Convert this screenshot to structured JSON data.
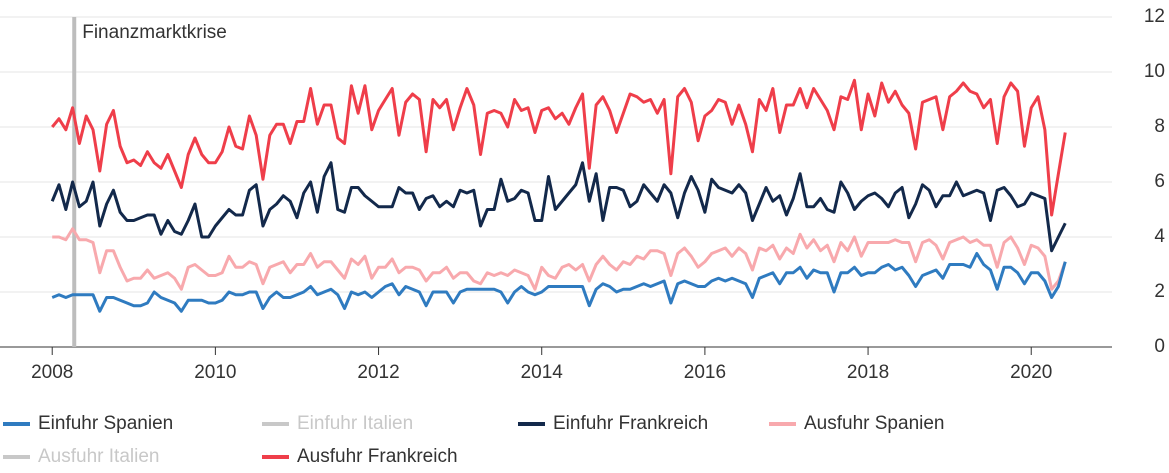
{
  "chart_data": {
    "type": "line",
    "annotation": {
      "text": "Finanzmarktkrise",
      "x": 2008.27
    },
    "x": [
      2008,
      2008.083,
      2008.167,
      2008.25,
      2008.333,
      2008.417,
      2008.5,
      2008.583,
      2008.667,
      2008.75,
      2008.833,
      2008.917,
      2009,
      2009.083,
      2009.167,
      2009.25,
      2009.333,
      2009.417,
      2009.5,
      2009.583,
      2009.667,
      2009.75,
      2009.833,
      2009.917,
      2010,
      2010.083,
      2010.167,
      2010.25,
      2010.333,
      2010.417,
      2010.5,
      2010.583,
      2010.667,
      2010.75,
      2010.833,
      2010.917,
      2011,
      2011.083,
      2011.167,
      2011.25,
      2011.333,
      2011.417,
      2011.5,
      2011.583,
      2011.667,
      2011.75,
      2011.833,
      2011.917,
      2012,
      2012.083,
      2012.167,
      2012.25,
      2012.333,
      2012.417,
      2012.5,
      2012.583,
      2012.667,
      2012.75,
      2012.833,
      2012.917,
      2013,
      2013.083,
      2013.167,
      2013.25,
      2013.333,
      2013.417,
      2013.5,
      2013.583,
      2013.667,
      2013.75,
      2013.833,
      2013.917,
      2014,
      2014.083,
      2014.167,
      2014.25,
      2014.333,
      2014.417,
      2014.5,
      2014.583,
      2014.667,
      2014.75,
      2014.833,
      2014.917,
      2015,
      2015.083,
      2015.167,
      2015.25,
      2015.333,
      2015.417,
      2015.5,
      2015.583,
      2015.667,
      2015.75,
      2015.833,
      2015.917,
      2016,
      2016.083,
      2016.167,
      2016.25,
      2016.333,
      2016.417,
      2016.5,
      2016.583,
      2016.667,
      2016.75,
      2016.833,
      2016.917,
      2017,
      2017.083,
      2017.167,
      2017.25,
      2017.333,
      2017.417,
      2017.5,
      2017.583,
      2017.667,
      2017.75,
      2017.833,
      2017.917,
      2018,
      2018.083,
      2018.167,
      2018.25,
      2018.333,
      2018.417,
      2018.5,
      2018.583,
      2018.667,
      2018.75,
      2018.833,
      2018.917,
      2019,
      2019.083,
      2019.167,
      2019.25,
      2019.333,
      2019.417,
      2019.5,
      2019.583,
      2019.667,
      2019.75,
      2019.833,
      2019.917,
      2020,
      2020.083,
      2020.167,
      2020.25,
      2020.333,
      2020.417
    ],
    "series": [
      {
        "name": "Ausfuhr Spanien",
        "color": "#f8a9ad",
        "values": [
          4.0,
          4.0,
          3.9,
          4.3,
          3.9,
          3.9,
          3.8,
          2.7,
          3.5,
          3.5,
          2.9,
          2.4,
          2.5,
          2.5,
          2.8,
          2.5,
          2.6,
          2.7,
          2.5,
          2.1,
          2.9,
          3.0,
          2.8,
          2.6,
          2.6,
          2.7,
          3.3,
          2.9,
          2.9,
          3.1,
          3.0,
          2.3,
          2.9,
          3.0,
          3.1,
          2.7,
          3.0,
          3.0,
          3.4,
          2.9,
          3.1,
          3.1,
          2.8,
          2.5,
          3.2,
          3.0,
          3.3,
          2.5,
          2.9,
          2.9,
          3.2,
          2.7,
          2.9,
          2.9,
          2.8,
          2.4,
          2.7,
          2.7,
          2.9,
          2.5,
          2.7,
          2.7,
          2.4,
          2.3,
          2.7,
          2.6,
          2.7,
          2.6,
          2.8,
          2.7,
          2.6,
          2.1,
          2.9,
          2.6,
          2.5,
          2.9,
          3.0,
          2.8,
          3.0,
          2.4,
          3.0,
          3.3,
          3.0,
          2.8,
          3.1,
          3.0,
          3.3,
          3.2,
          3.5,
          3.5,
          3.4,
          2.6,
          3.4,
          3.6,
          3.3,
          2.9,
          3.1,
          3.4,
          3.5,
          3.6,
          3.3,
          3.6,
          3.4,
          2.8,
          3.6,
          3.5,
          3.7,
          3.2,
          3.6,
          3.4,
          4.1,
          3.6,
          3.9,
          3.5,
          3.7,
          3.1,
          3.8,
          3.5,
          4.0,
          3.3,
          3.8,
          3.8,
          3.8,
          3.8,
          3.9,
          3.8,
          3.8,
          3.1,
          3.8,
          3.9,
          3.7,
          3.2,
          3.8,
          3.9,
          4.0,
          3.8,
          3.9,
          3.7,
          3.7,
          2.9,
          3.8,
          4.0,
          3.6,
          3.0,
          3.7,
          3.6,
          3.3,
          2.1,
          2.4,
          3.1
        ]
      },
      {
        "name": "Einfuhr Spanien",
        "color": "#2f7bc0",
        "values": [
          1.8,
          1.9,
          1.8,
          1.9,
          1.9,
          1.9,
          1.9,
          1.3,
          1.8,
          1.8,
          1.7,
          1.6,
          1.5,
          1.5,
          1.6,
          2.0,
          1.8,
          1.7,
          1.6,
          1.3,
          1.7,
          1.7,
          1.7,
          1.6,
          1.6,
          1.7,
          2.0,
          1.9,
          1.9,
          2.0,
          2.0,
          1.4,
          1.8,
          2.0,
          1.8,
          1.8,
          1.9,
          2.0,
          2.2,
          1.9,
          2.0,
          2.1,
          1.9,
          1.4,
          2.0,
          1.9,
          2.0,
          1.8,
          2.0,
          2.2,
          2.3,
          1.9,
          2.2,
          2.1,
          2.0,
          1.5,
          2.0,
          2.0,
          2.0,
          1.6,
          2.0,
          2.1,
          2.1,
          2.1,
          2.1,
          2.1,
          2.0,
          1.6,
          2.0,
          2.2,
          2.0,
          1.9,
          2.0,
          2.2,
          2.2,
          2.2,
          2.2,
          2.2,
          2.2,
          1.5,
          2.1,
          2.3,
          2.2,
          2.0,
          2.1,
          2.1,
          2.2,
          2.3,
          2.2,
          2.3,
          2.4,
          1.6,
          2.3,
          2.4,
          2.3,
          2.2,
          2.2,
          2.4,
          2.5,
          2.4,
          2.5,
          2.4,
          2.3,
          1.8,
          2.5,
          2.6,
          2.7,
          2.3,
          2.7,
          2.7,
          2.9,
          2.5,
          2.8,
          2.7,
          2.7,
          2.0,
          2.7,
          2.7,
          2.9,
          2.6,
          2.7,
          2.7,
          2.9,
          3.0,
          2.8,
          2.9,
          2.6,
          2.2,
          2.6,
          2.7,
          2.8,
          2.5,
          3.0,
          3.0,
          3.0,
          2.9,
          3.4,
          3.0,
          2.8,
          2.1,
          2.9,
          2.9,
          2.7,
          2.3,
          2.7,
          2.7,
          2.4,
          1.8,
          2.2,
          3.1
        ]
      },
      {
        "name": "Einfuhr Frankreich",
        "color": "#13294b",
        "values": [
          5.3,
          5.9,
          5.0,
          6.0,
          5.1,
          5.3,
          6.0,
          4.4,
          5.2,
          5.7,
          4.9,
          4.6,
          4.6,
          4.7,
          4.8,
          4.8,
          4.1,
          4.6,
          4.2,
          4.1,
          4.6,
          5.2,
          4.0,
          4.0,
          4.4,
          4.7,
          5.0,
          4.8,
          4.8,
          5.7,
          5.9,
          4.4,
          5.0,
          5.2,
          5.5,
          5.3,
          4.7,
          5.6,
          6.0,
          4.9,
          6.2,
          6.7,
          5.0,
          4.9,
          5.8,
          5.8,
          5.5,
          5.3,
          5.1,
          5.1,
          5.1,
          5.8,
          5.6,
          5.6,
          5.0,
          5.4,
          5.5,
          5.1,
          5.3,
          5.1,
          5.7,
          5.6,
          5.7,
          4.4,
          5.0,
          5.0,
          6.1,
          5.3,
          5.4,
          5.7,
          5.6,
          4.6,
          4.6,
          6.2,
          5.0,
          5.3,
          5.6,
          5.9,
          6.7,
          5.3,
          6.3,
          4.6,
          5.8,
          5.8,
          5.7,
          5.1,
          5.3,
          5.9,
          5.6,
          5.3,
          5.9,
          5.6,
          4.7,
          5.6,
          6.2,
          5.7,
          4.9,
          6.1,
          5.8,
          5.7,
          5.6,
          5.9,
          5.6,
          4.6,
          5.2,
          5.8,
          5.3,
          5.5,
          4.8,
          5.4,
          6.3,
          5.1,
          5.1,
          5.4,
          5.0,
          4.9,
          6.0,
          5.6,
          5.0,
          5.3,
          5.5,
          5.6,
          5.4,
          5.1,
          5.6,
          5.8,
          4.7,
          5.2,
          5.9,
          5.7,
          5.1,
          5.5,
          5.5,
          6.0,
          5.5,
          5.6,
          5.7,
          5.6,
          4.6,
          5.7,
          5.8,
          5.5,
          5.1,
          5.2,
          5.6,
          5.5,
          5.4,
          3.5,
          4.0,
          4.5
        ]
      },
      {
        "name": "Ausfuhr Frankreich",
        "color": "#ef3e4a",
        "values": [
          8.0,
          8.3,
          7.9,
          8.7,
          7.4,
          8.4,
          7.9,
          6.4,
          8.1,
          8.6,
          7.3,
          6.7,
          6.8,
          6.6,
          7.1,
          6.7,
          6.5,
          7.0,
          6.4,
          5.8,
          7.0,
          7.6,
          7.0,
          6.7,
          6.7,
          7.1,
          8.0,
          7.3,
          7.2,
          8.4,
          7.7,
          6.1,
          7.7,
          8.1,
          8.1,
          7.4,
          8.2,
          8.2,
          9.4,
          8.1,
          8.8,
          8.8,
          7.6,
          7.4,
          9.5,
          8.5,
          9.5,
          7.9,
          8.6,
          9.0,
          9.4,
          7.7,
          8.9,
          9.2,
          9.0,
          7.1,
          9.0,
          8.7,
          9.0,
          7.9,
          8.7,
          9.4,
          8.8,
          7.0,
          8.5,
          8.6,
          8.5,
          8.0,
          9.0,
          8.6,
          8.7,
          7.8,
          8.6,
          8.7,
          8.3,
          8.5,
          8.1,
          8.7,
          9.2,
          6.5,
          8.8,
          9.1,
          8.6,
          7.8,
          8.5,
          9.2,
          9.1,
          8.9,
          9.0,
          8.5,
          9.0,
          6.3,
          9.1,
          9.4,
          8.9,
          7.5,
          8.4,
          8.6,
          9.0,
          8.9,
          8.1,
          8.8,
          8.1,
          7.1,
          9.0,
          8.6,
          9.4,
          7.8,
          8.8,
          8.8,
          9.4,
          8.7,
          9.4,
          9.0,
          8.6,
          7.9,
          9.1,
          9.0,
          9.7,
          7.9,
          9.2,
          8.4,
          9.6,
          8.9,
          9.3,
          8.8,
          8.5,
          7.2,
          8.9,
          9.0,
          9.1,
          7.9,
          9.1,
          9.3,
          9.6,
          9.3,
          9.2,
          8.7,
          9.0,
          7.4,
          9.1,
          9.6,
          9.3,
          7.3,
          8.7,
          9.1,
          7.9,
          4.8,
          6.3,
          7.8
        ]
      },
      {
        "name": "Einfuhr Italien",
        "color": "#c8c8c8",
        "visible": false
      },
      {
        "name": "Ausfuhr Italien",
        "color": "#c8c8c8",
        "visible": false
      }
    ],
    "legend_order": [
      1,
      4,
      2,
      0,
      5,
      3
    ],
    "xlim": [
      2007.36,
      2020.99
    ],
    "xticks": [
      2008,
      2010,
      2012,
      2014,
      2016,
      2018,
      2020
    ],
    "ylim": [
      0,
      12
    ],
    "yticks": [
      0,
      2,
      4,
      6,
      8,
      10,
      12
    ],
    "grid": true
  }
}
